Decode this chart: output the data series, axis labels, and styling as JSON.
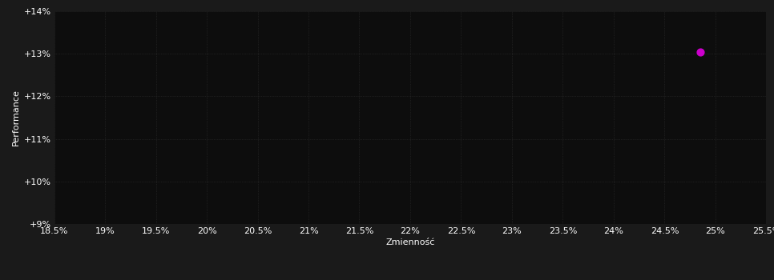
{
  "background_color": "#1a1a1a",
  "plot_bg_color": "#0d0d0d",
  "grid_color": "#2e2e2e",
  "text_color": "#ffffff",
  "point_x": 24.85,
  "point_y": 13.05,
  "point_color": "#cc00cc",
  "point_size": 40,
  "xlim": [
    18.5,
    25.5
  ],
  "ylim": [
    9.0,
    14.0
  ],
  "xticks": [
    18.5,
    19.0,
    19.5,
    20.0,
    20.5,
    21.0,
    21.5,
    22.0,
    22.5,
    23.0,
    23.5,
    24.0,
    24.5,
    25.0,
    25.5
  ],
  "yticks": [
    9.0,
    10.0,
    11.0,
    12.0,
    13.0,
    14.0
  ],
  "xlabel": "Zmienność",
  "ylabel": "Performance",
  "xlabel_fontsize": 8,
  "ylabel_fontsize": 8,
  "tick_fontsize": 8,
  "grid_linestyle": ":",
  "grid_linewidth": 0.5
}
